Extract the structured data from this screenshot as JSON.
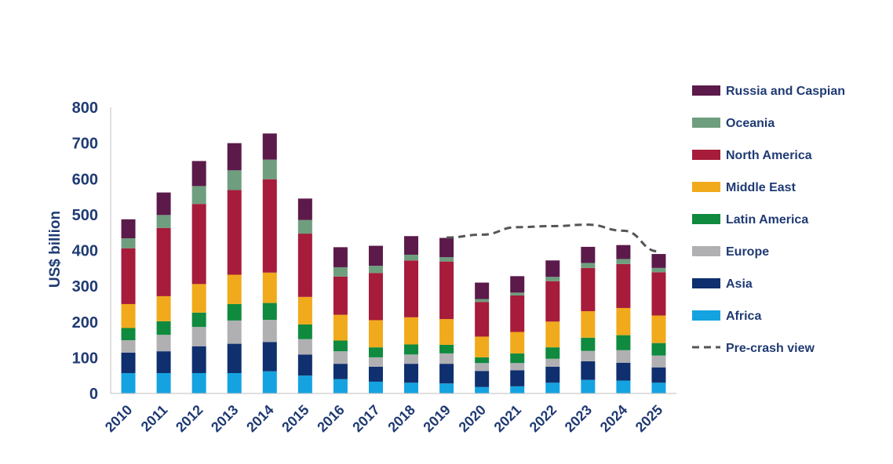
{
  "chart_data": {
    "type": "bar",
    "stacked": true,
    "title": "",
    "xlabel": "",
    "ylabel": "US$ billion",
    "ylim": [
      0,
      800
    ],
    "yticks": [
      0,
      100,
      200,
      300,
      400,
      500,
      600,
      700,
      800
    ],
    "grid": false,
    "legend_position": "right",
    "categories": [
      "2010",
      "2011",
      "2012",
      "2013",
      "2014",
      "2015",
      "2016",
      "2017",
      "2018",
      "2019",
      "2020",
      "2021",
      "2022",
      "2023",
      "2024",
      "2025"
    ],
    "series": [
      {
        "name": "Africa",
        "color": "#14a3e0",
        "values": [
          57,
          57,
          57,
          57,
          62,
          50,
          40,
          33,
          30,
          28,
          18,
          20,
          30,
          38,
          36,
          30
        ]
      },
      {
        "name": "Asia",
        "color": "#0f2f6e",
        "values": [
          57,
          61,
          75,
          82,
          82,
          59,
          43,
          42,
          53,
          55,
          45,
          45,
          45,
          52,
          50,
          43
        ]
      },
      {
        "name": "Europe",
        "color": "#b0b0b3",
        "values": [
          35,
          46,
          54,
          65,
          62,
          43,
          35,
          26,
          26,
          29,
          22,
          20,
          22,
          29,
          35,
          33
        ]
      },
      {
        "name": "Latin America",
        "color": "#0f8a3e",
        "values": [
          34,
          38,
          40,
          46,
          47,
          41,
          30,
          28,
          28,
          24,
          16,
          27,
          32,
          37,
          42,
          35
        ]
      },
      {
        "name": "Middle East",
        "color": "#f0aa1c",
        "values": [
          67,
          70,
          80,
          82,
          85,
          77,
          72,
          76,
          76,
          72,
          58,
          60,
          72,
          74,
          76,
          77
        ]
      },
      {
        "name": "North America",
        "color": "#a61c3a",
        "values": [
          156,
          191,
          224,
          237,
          261,
          177,
          107,
          132,
          159,
          161,
          97,
          102,
          113,
          121,
          123,
          121
        ]
      },
      {
        "name": "Oceania",
        "color": "#6e9e7e",
        "values": [
          28,
          36,
          50,
          55,
          55,
          38,
          26,
          20,
          16,
          12,
          8,
          8,
          12,
          14,
          14,
          12
        ]
      },
      {
        "name": "Russia and Caspian",
        "color": "#5b1a4a",
        "values": [
          53,
          63,
          70,
          76,
          73,
          60,
          56,
          56,
          52,
          54,
          46,
          46,
          46,
          45,
          39,
          39
        ]
      }
    ],
    "line_series": [
      {
        "name": "Pre-crash view",
        "color": "#555555",
        "style": "dashed",
        "x": [
          "2019",
          "2020",
          "2021",
          "2022",
          "2023",
          "2024",
          "2025"
        ],
        "values": [
          436,
          444,
          465,
          468,
          472,
          455,
          397
        ]
      }
    ],
    "legend_order": [
      "Russia and Caspian",
      "Oceania",
      "North America",
      "Middle East",
      "Latin America",
      "Europe",
      "Asia",
      "Africa",
      "Pre-crash view"
    ]
  }
}
